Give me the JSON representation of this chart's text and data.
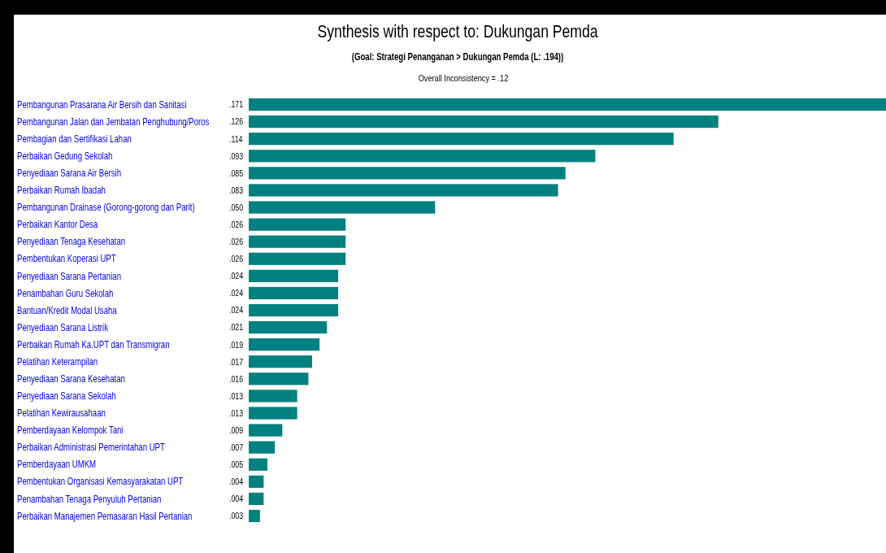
{
  "chart_data": {
    "type": "bar",
    "orientation": "horizontal",
    "title": "Synthesis with respect to: Dukungan Pemda",
    "subtitle": "(Goal: Strategi Penanganan > Dukungan Pemda (L: .194))",
    "annotations": [
      "Overall Inconsistency = .12"
    ],
    "categories": [
      "Pembangunan Prasarana Air Bersih dan Sanitasi",
      "Pembangunan Jalan dan Jembatan Penghubung/Poros",
      "Pembagian dan Sertifikasi Lahan",
      "Perbaikan Gedung Sekolah",
      "Penyediaan Sarana Air Bersih",
      "Perbaikan Rumah Ibadah",
      "Pembangunan Drainase (Gorong-gorong dan Parit)",
      "Perbaikan Kantor Desa",
      "Penyediaan Tenaga Kesehatan",
      "Pembentukan Koperasi UPT",
      "Penyediaan Sarana Pertanian",
      "Penambahan Guru Sekolah",
      "Bantuan/Kredit Modal Usaha",
      "Penyediaan Sarana Listrik",
      "Perbaikan Rumah Ka.UPT dan Transmigran",
      "Pelatihan Keterampilan",
      "Penyediaan Sarana Kesehatan",
      "Penyediaan Sarana Sekolah",
      "Pelatihan Kewirausahaan",
      "Pemberdayaan Kelompok Tani",
      "Perbaikan Administrasi Pemerintahan UPT",
      "Pemberdayaan UMKM",
      "Pembentukan Organisasi Kemasyarakatan UPT",
      "Penambahan Tenaga Penyuluh Pertanian",
      "Perbaikan Manajemen Pemasaran Hasil Pertanian"
    ],
    "values": [
      0.171,
      0.126,
      0.114,
      0.093,
      0.085,
      0.083,
      0.05,
      0.026,
      0.026,
      0.026,
      0.024,
      0.024,
      0.024,
      0.021,
      0.019,
      0.017,
      0.016,
      0.013,
      0.013,
      0.009,
      0.007,
      0.005,
      0.004,
      0.004,
      0.003
    ],
    "value_labels": [
      ".171",
      ".126",
      ".114",
      ".093",
      ".085",
      ".083",
      ".050",
      ".026",
      ".026",
      ".026",
      ".024",
      ".024",
      ".024",
      ".021",
      ".019",
      ".017",
      ".016",
      ".013",
      ".013",
      ".009",
      ".007",
      ".005",
      ".004",
      ".004",
      ".003"
    ],
    "color": "#008080"
  }
}
